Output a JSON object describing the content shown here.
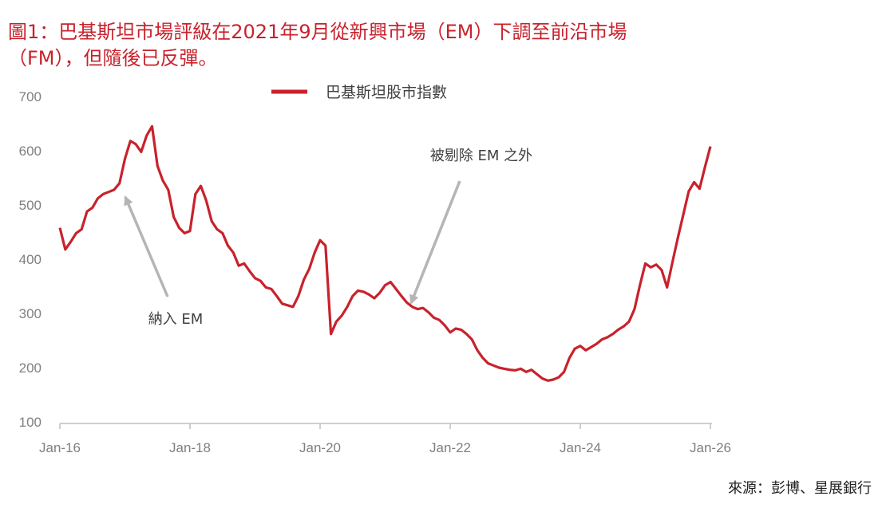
{
  "title_line1": "圖1：巴基斯坦市場評級在2021年9月從新興市場（EM）下調至前沿市場",
  "title_line2": "（FM），但隨後已反彈。",
  "source": "來源：彭博、星展銀行",
  "colors": {
    "title": "#c8222c",
    "series": "#c8222c",
    "axis_text": "#7f7f7f",
    "annotation_arrow": "#b5b5b5"
  },
  "chart_data": {
    "type": "line",
    "title": "",
    "xlabel": "",
    "ylabel": "",
    "ylim": [
      100,
      700
    ],
    "yticks": [
      100,
      200,
      300,
      400,
      500,
      600,
      700
    ],
    "xlim": [
      "2016-01",
      "2026-02"
    ],
    "xticks": [
      "Jan-16",
      "Jan-18",
      "Jan-20",
      "Jan-22",
      "Jan-24",
      "Jan-26"
    ],
    "legend": {
      "position": "top",
      "entries": [
        "巴基斯坦股市指數"
      ]
    },
    "grid": false,
    "series": [
      {
        "name": "巴基斯坦股市指數",
        "x": [
          "2016-01",
          "2016-02",
          "2016-03",
          "2016-04",
          "2016-05",
          "2016-06",
          "2016-07",
          "2016-08",
          "2016-09",
          "2016-10",
          "2016-11",
          "2016-12",
          "2017-01",
          "2017-02",
          "2017-03",
          "2017-04",
          "2017-05",
          "2017-06",
          "2017-07",
          "2017-08",
          "2017-09",
          "2017-10",
          "2017-11",
          "2017-12",
          "2018-01",
          "2018-02",
          "2018-03",
          "2018-04",
          "2018-05",
          "2018-06",
          "2018-07",
          "2018-08",
          "2018-09",
          "2018-10",
          "2018-11",
          "2018-12",
          "2019-01",
          "2019-02",
          "2019-03",
          "2019-04",
          "2019-05",
          "2019-06",
          "2019-07",
          "2019-08",
          "2019-09",
          "2019-10",
          "2019-11",
          "2019-12",
          "2020-01",
          "2020-02",
          "2020-03",
          "2020-04",
          "2020-05",
          "2020-06",
          "2020-07",
          "2020-08",
          "2020-09",
          "2020-10",
          "2020-11",
          "2020-12",
          "2021-01",
          "2021-02",
          "2021-03",
          "2021-04",
          "2021-05",
          "2021-06",
          "2021-07",
          "2021-08",
          "2021-09",
          "2021-10",
          "2021-11",
          "2021-12",
          "2022-01",
          "2022-02",
          "2022-03",
          "2022-04",
          "2022-05",
          "2022-06",
          "2022-07",
          "2022-08",
          "2022-09",
          "2022-10",
          "2022-11",
          "2022-12",
          "2023-01",
          "2023-02",
          "2023-03",
          "2023-04",
          "2023-05",
          "2023-06",
          "2023-07",
          "2023-08",
          "2023-09",
          "2023-10",
          "2023-11",
          "2023-12",
          "2024-01",
          "2024-02",
          "2024-03",
          "2024-04",
          "2024-05",
          "2024-06",
          "2024-07",
          "2024-08",
          "2024-09",
          "2024-10",
          "2024-11",
          "2024-12",
          "2025-01",
          "2025-02",
          "2025-03",
          "2025-04",
          "2025-05",
          "2025-06",
          "2025-07",
          "2025-08",
          "2025-09",
          "2025-10",
          "2025-11",
          "2025-12",
          "2026-01"
        ],
        "values": [
          458,
          418,
          432,
          448,
          455,
          488,
          495,
          512,
          520,
          524,
          528,
          540,
          585,
          618,
          612,
          598,
          628,
          645,
          572,
          545,
          528,
          478,
          458,
          448,
          452,
          520,
          535,
          508,
          470,
          455,
          448,
          425,
          412,
          388,
          392,
          378,
          365,
          360,
          348,
          345,
          332,
          318,
          315,
          312,
          332,
          362,
          382,
          412,
          435,
          425,
          262,
          285,
          296,
          312,
          332,
          342,
          340,
          335,
          328,
          338,
          352,
          358,
          345,
          332,
          320,
          312,
          308,
          310,
          302,
          292,
          288,
          278,
          265,
          272,
          270,
          262,
          252,
          232,
          218,
          208,
          204,
          200,
          198,
          196,
          195,
          198,
          192,
          196,
          188,
          180,
          176,
          178,
          182,
          192,
          218,
          235,
          240,
          232,
          238,
          244,
          252,
          256,
          262,
          270,
          276,
          285,
          308,
          352,
          392,
          385,
          390,
          380,
          348,
          395,
          440,
          482,
          525,
          542,
          530,
          570,
          608
        ]
      }
    ],
    "annotations": [
      {
        "text": "納入 EM",
        "x": "2017-06",
        "y": 515
      },
      {
        "text": "被剔除 EM 之外",
        "x": "2021-09",
        "y": 305
      }
    ]
  }
}
